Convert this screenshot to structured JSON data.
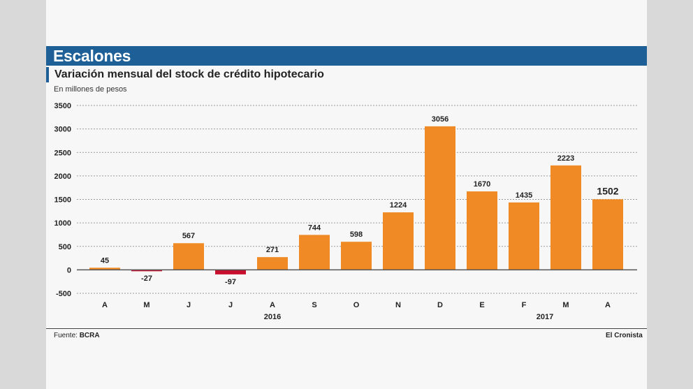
{
  "header": {
    "title": "Escalones"
  },
  "subtitle": "Variación mensual del stock de crédito hipotecario",
  "units": "En millones de pesos",
  "footer": {
    "source_label": "Fuente:",
    "source_value": "BCRA",
    "brand": "El Cronista"
  },
  "colors": {
    "positive": "#f08a24",
    "negative": "#c8102e",
    "header": "#1d5f96"
  },
  "chart_data": {
    "type": "bar",
    "title": "Variación mensual del stock de crédito hipotecario",
    "ylabel": "En millones de pesos",
    "categories": [
      "A",
      "M",
      "J",
      "J",
      "A",
      "S",
      "O",
      "N",
      "D",
      "E",
      "F",
      "M",
      "A"
    ],
    "values": [
      45,
      -27,
      567,
      -97,
      271,
      744,
      598,
      1224,
      3056,
      1670,
      1435,
      2223,
      1502
    ],
    "year_labels": [
      {
        "label": "2016",
        "start_index": 0,
        "end_index": 8
      },
      {
        "label": "2017",
        "start_index": 9,
        "end_index": 12
      }
    ],
    "ylim": [
      -500,
      3500
    ],
    "yticks": [
      3500,
      3000,
      2500,
      2000,
      1500,
      1000,
      500,
      0,
      -500
    ],
    "grid": true,
    "highlighted_value_index": 12
  }
}
